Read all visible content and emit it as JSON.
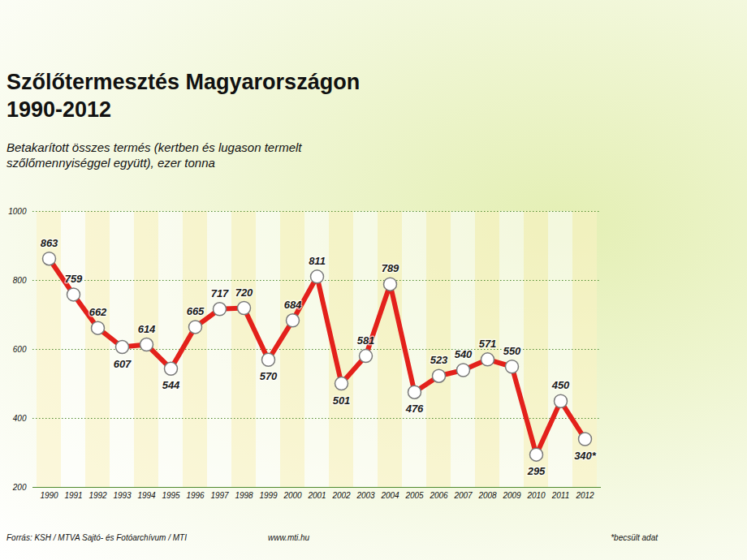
{
  "chart_data": {
    "type": "line",
    "title": "Szőlőtermesztés Magyarországon 1990-2012",
    "subtitle": "Betakarított összes termés (kertben és lugason termelt szőlőmennyiséggel együtt), ezer tonna",
    "caption": "Forrás: KSH / MTVA Sajtó- és Fotóarchívum / MTI",
    "annotations": [
      "www.mti.hu",
      "*becsült adat"
    ],
    "categories": [
      "1990",
      "1991",
      "1992",
      "1993",
      "1994",
      "1995",
      "1996",
      "1997",
      "1998",
      "1999",
      "2000",
      "2001",
      "2002",
      "2003",
      "2004",
      "2005",
      "2006",
      "2007",
      "2008",
      "2009",
      "2010",
      "2011",
      "2012"
    ],
    "values": [
      863,
      759,
      662,
      607,
      614,
      544,
      665,
      717,
      720,
      570,
      684,
      811,
      501,
      581,
      789,
      476,
      523,
      540,
      571,
      550,
      295,
      450,
      340
    ],
    "value_labels": [
      "863",
      "759",
      "662",
      "607",
      "614",
      "544",
      "665",
      "717",
      "720",
      "570",
      "684",
      "811",
      "501",
      "581",
      "789",
      "476",
      "523",
      "540",
      "571",
      "550",
      "295",
      "450",
      "340*"
    ],
    "color": "#e3211b",
    "marker": "circle",
    "data_labels": true,
    "ylim": [
      200,
      1000
    ],
    "yticks": [
      200,
      400,
      600,
      800,
      1000
    ],
    "grid": true
  }
}
